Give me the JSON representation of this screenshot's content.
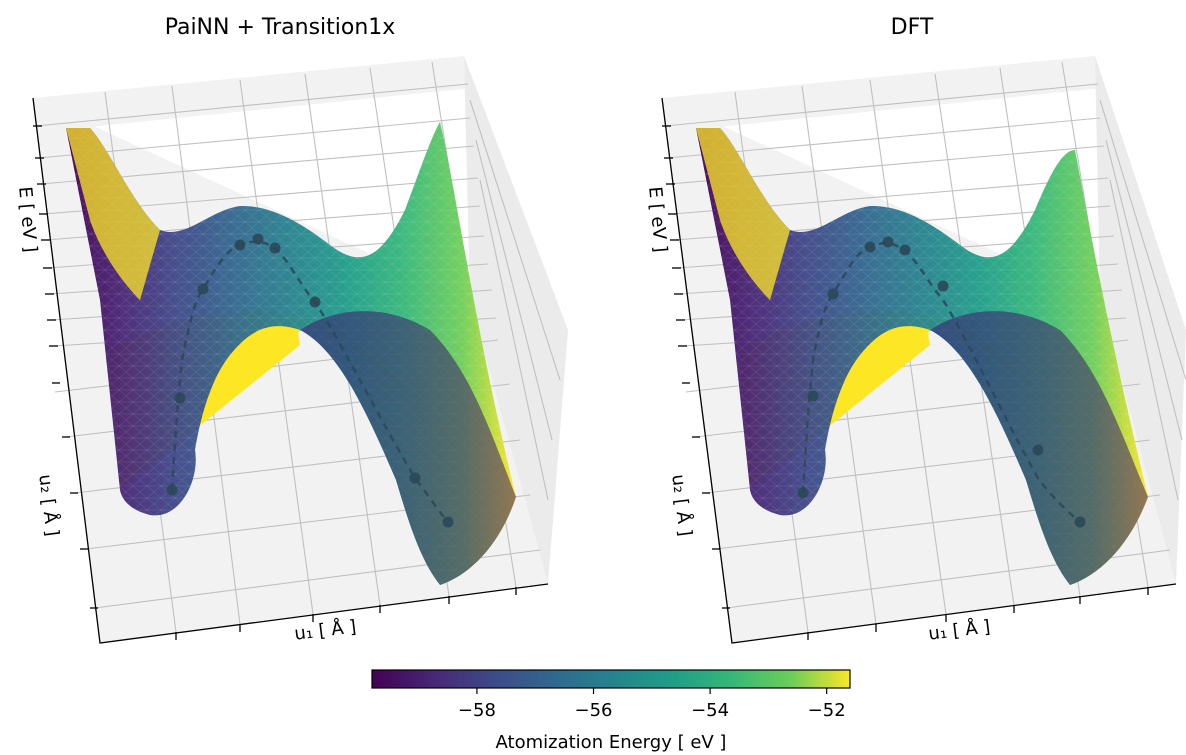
{
  "chart_data": {
    "type": "surface3d",
    "colormap": "viridis",
    "panels": [
      {
        "title": "PaiNN + Transition1x",
        "xlabel": "u₁ [ Å ]",
        "ylabel": "u₂ [ Å ]",
        "zlabel": "E [ eV ]",
        "path": {
          "style": "dashed",
          "points": 9
        }
      },
      {
        "title": "DFT",
        "xlabel": "u₁ [ Å ]",
        "ylabel": "u₂ [ Å ]",
        "zlabel": "E [ eV ]",
        "path": {
          "style": "dashed",
          "points": 9
        }
      }
    ],
    "colorbar": {
      "label": "Atomization Energy [ eV ]",
      "range": [
        -59.8,
        -51.6
      ],
      "ticks": [
        -58,
        -56,
        -54,
        -52
      ],
      "tick_labels": [
        "−58",
        "−56",
        "−54",
        "−52"
      ]
    }
  }
}
